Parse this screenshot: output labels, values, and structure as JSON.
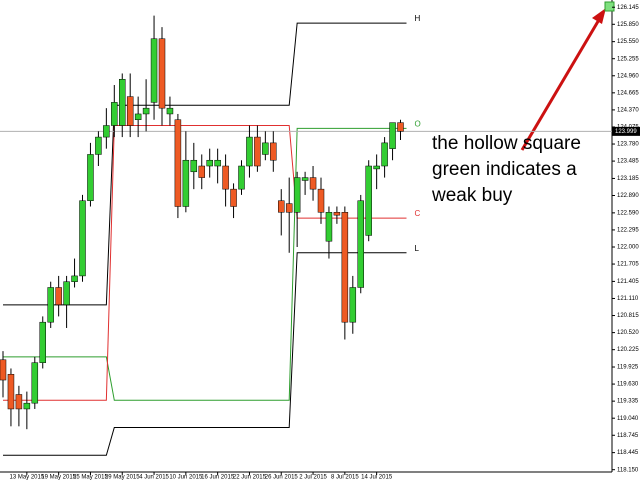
{
  "chart_data": {
    "type": "candlestick",
    "categories": [
      null,
      null,
      null,
      "13 May 2015",
      null,
      null,
      null,
      "19 May 2015",
      null,
      null,
      null,
      "25 May 2015",
      null,
      null,
      null,
      "29 May 2015",
      null,
      null,
      null,
      "4 Jun 2015",
      null,
      null,
      null,
      "10 Jun 2015",
      null,
      null,
      null,
      "16 Jun 2015",
      null,
      null,
      null,
      "22 Jun 2015",
      null,
      null,
      null,
      "26 Jun 2015",
      null,
      null,
      null,
      "2 Jul 2015",
      null,
      null,
      null,
      "8 Jul 2015",
      null,
      null,
      null,
      "14 Jul 2015",
      null,
      null,
      null
    ],
    "ohlc": [
      [
        120.05,
        120.2,
        119.4,
        119.7
      ],
      [
        119.8,
        119.9,
        118.9,
        119.2
      ],
      [
        119.45,
        119.6,
        118.9,
        119.2
      ],
      [
        119.2,
        119.5,
        118.85,
        119.3
      ],
      [
        119.3,
        120.1,
        119.2,
        120.0
      ],
      [
        120.0,
        120.8,
        119.9,
        120.7
      ],
      [
        120.7,
        121.4,
        120.6,
        121.3
      ],
      [
        121.3,
        121.5,
        120.8,
        121.0
      ],
      [
        121.0,
        121.5,
        120.6,
        121.4
      ],
      [
        121.4,
        121.8,
        121.3,
        121.5
      ],
      [
        121.5,
        122.9,
        121.4,
        122.8
      ],
      [
        122.8,
        123.8,
        122.7,
        123.6
      ],
      [
        123.6,
        124.0,
        123.4,
        123.9
      ],
      [
        123.9,
        124.4,
        123.7,
        124.1
      ],
      [
        124.1,
        124.8,
        123.9,
        124.5
      ],
      [
        124.1,
        125.0,
        123.9,
        124.9
      ],
      [
        124.6,
        125.0,
        123.9,
        124.1
      ],
      [
        124.2,
        124.6,
        123.9,
        124.3
      ],
      [
        124.3,
        124.9,
        124.0,
        124.4
      ],
      [
        124.5,
        126.0,
        124.2,
        125.6
      ],
      [
        125.6,
        125.8,
        124.1,
        124.4
      ],
      [
        124.3,
        124.6,
        124.1,
        124.4
      ],
      [
        124.2,
        124.3,
        122.5,
        122.7
      ],
      [
        122.7,
        124.0,
        122.6,
        123.5
      ],
      [
        123.3,
        123.8,
        123.0,
        123.5
      ],
      [
        123.4,
        123.6,
        123.0,
        123.2
      ],
      [
        123.4,
        123.7,
        123.2,
        123.5
      ],
      [
        123.4,
        123.7,
        123.1,
        123.5
      ],
      [
        123.4,
        123.6,
        122.7,
        123.0
      ],
      [
        123.0,
        123.1,
        122.5,
        122.7
      ],
      [
        123.0,
        123.5,
        122.9,
        123.4
      ],
      [
        123.4,
        124.1,
        123.2,
        123.9
      ],
      [
        123.9,
        124.1,
        123.3,
        123.4
      ],
      [
        123.6,
        124.0,
        123.5,
        123.8
      ],
      [
        123.8,
        124.0,
        123.3,
        123.5
      ],
      [
        122.8,
        123.0,
        122.2,
        122.6
      ],
      [
        122.75,
        123.2,
        121.9,
        122.6
      ],
      [
        122.6,
        123.3,
        122.0,
        123.2
      ],
      [
        123.15,
        123.3,
        122.9,
        123.2
      ],
      [
        123.2,
        123.4,
        122.8,
        123.0
      ],
      [
        123.0,
        123.2,
        122.4,
        122.6
      ],
      [
        122.1,
        122.7,
        121.8,
        122.6
      ],
      [
        122.6,
        122.7,
        122.4,
        122.55
      ],
      [
        122.6,
        122.7,
        120.4,
        120.7
      ],
      [
        120.7,
        121.5,
        120.5,
        121.3
      ],
      [
        121.3,
        122.9,
        121.2,
        122.8
      ],
      [
        122.2,
        123.5,
        122.1,
        123.4
      ],
      [
        123.35,
        123.6,
        123.0,
        123.4
      ],
      [
        123.4,
        123.9,
        123.2,
        123.8
      ],
      [
        123.7,
        124.1,
        123.5,
        124.15
      ],
      [
        124.15,
        124.2,
        123.85,
        124.0
      ]
    ],
    "up_color": "#32cd32",
    "down_color": "#ee5a24",
    "levels": [
      {
        "name": "H",
        "color": "#000000",
        "values": [
          121.0,
          121.0,
          121.0,
          121.0,
          121.0,
          121.0,
          121.0,
          121.0,
          121.0,
          121.0,
          121.0,
          121.0,
          121.0,
          121.0,
          124.45,
          124.45,
          124.45,
          124.45,
          124.45,
          124.45,
          124.45,
          124.45,
          124.45,
          124.45,
          124.45,
          124.45,
          124.45,
          124.45,
          124.45,
          124.45,
          124.45,
          124.45,
          124.45,
          124.45,
          124.45,
          124.45,
          124.45,
          125.87,
          125.87,
          125.87,
          125.87,
          125.87,
          125.87,
          125.87,
          125.87,
          125.87,
          125.87,
          125.87,
          125.87,
          125.87,
          125.87
        ]
      },
      {
        "name": "O",
        "color": "#2e9e2e",
        "values": [
          120.1,
          120.1,
          120.1,
          120.1,
          120.1,
          120.1,
          120.1,
          120.1,
          120.1,
          120.1,
          120.1,
          120.1,
          120.1,
          120.1,
          119.35,
          119.35,
          119.35,
          119.35,
          119.35,
          119.35,
          119.35,
          119.35,
          119.35,
          119.35,
          119.35,
          119.35,
          119.35,
          119.35,
          119.35,
          119.35,
          119.35,
          119.35,
          119.35,
          119.35,
          119.35,
          119.35,
          119.35,
          124.05,
          124.05,
          124.05,
          124.05,
          124.05,
          124.05,
          124.05,
          124.05,
          124.05,
          124.05,
          124.05,
          124.05,
          124.05,
          124.05
        ]
      },
      {
        "name": "C",
        "color": "#e03030",
        "values": [
          119.35,
          119.35,
          119.35,
          119.35,
          119.35,
          119.35,
          119.35,
          119.35,
          119.35,
          119.35,
          119.35,
          119.35,
          119.35,
          119.35,
          124.1,
          124.1,
          124.1,
          124.1,
          124.1,
          124.1,
          124.1,
          124.1,
          124.1,
          124.1,
          124.1,
          124.1,
          124.1,
          124.1,
          124.1,
          124.1,
          124.1,
          124.1,
          124.1,
          124.1,
          124.1,
          124.1,
          124.1,
          122.5,
          122.5,
          122.5,
          122.5,
          122.5,
          122.5,
          122.5,
          122.5,
          122.5,
          122.5,
          122.5,
          122.5,
          122.5,
          122.5
        ]
      },
      {
        "name": "L",
        "color": "#000000",
        "values": [
          118.4,
          118.4,
          118.4,
          118.4,
          118.4,
          118.4,
          118.4,
          118.4,
          118.4,
          118.4,
          118.4,
          118.4,
          118.4,
          118.4,
          118.88,
          118.88,
          118.88,
          118.88,
          118.88,
          118.88,
          118.88,
          118.88,
          118.88,
          118.88,
          118.88,
          118.88,
          118.88,
          118.88,
          118.88,
          118.88,
          118.88,
          118.88,
          118.88,
          118.88,
          118.88,
          118.88,
          118.88,
          121.9,
          121.9,
          121.9,
          121.9,
          121.9,
          121.9,
          121.9,
          121.9,
          121.9,
          121.9,
          121.9,
          121.9,
          121.9,
          121.9
        ]
      }
    ],
    "last_price": 123.999,
    "ylim": [
      118.11,
      126.27
    ],
    "yticks": [
      {
        "value": 126.145,
        "label": "126.145"
      },
      {
        "value": 125.85,
        "label": "125.850"
      },
      {
        "value": 125.55,
        "label": "125.550"
      },
      {
        "value": 125.255,
        "label": "125.255"
      },
      {
        "value": 124.96,
        "label": "124.960"
      },
      {
        "value": 124.665,
        "label": "124.665"
      },
      {
        "value": 124.37,
        "label": "124.370"
      },
      {
        "value": 124.075,
        "label": "124.075"
      },
      {
        "value": 123.78,
        "label": "123.780"
      },
      {
        "value": 123.485,
        "label": "123.485"
      },
      {
        "value": 123.185,
        "label": "123.185"
      },
      {
        "value": 122.89,
        "label": "122.890"
      },
      {
        "value": 122.59,
        "label": "122.590"
      },
      {
        "value": 122.295,
        "label": "122.295"
      },
      {
        "value": 122.0,
        "label": "122.000"
      },
      {
        "value": 121.705,
        "label": "121.705"
      },
      {
        "value": 121.405,
        "label": "121.405"
      },
      {
        "value": 121.11,
        "label": "121.110"
      },
      {
        "value": 120.815,
        "label": "120.815"
      },
      {
        "value": 120.52,
        "label": "120.520"
      },
      {
        "value": 120.225,
        "label": "120.225"
      },
      {
        "value": 119.925,
        "label": "119.925"
      },
      {
        "value": 119.63,
        "label": "119.630"
      },
      {
        "value": 119.335,
        "label": "119.335"
      },
      {
        "value": 119.04,
        "label": "119.040"
      },
      {
        "value": 118.745,
        "label": "118.745"
      },
      {
        "value": 118.445,
        "label": "118.445"
      },
      {
        "value": 118.15,
        "label": "118.150"
      }
    ],
    "annotation": [
      "the hollow square",
      "green indicates a",
      "weak buy"
    ]
  }
}
